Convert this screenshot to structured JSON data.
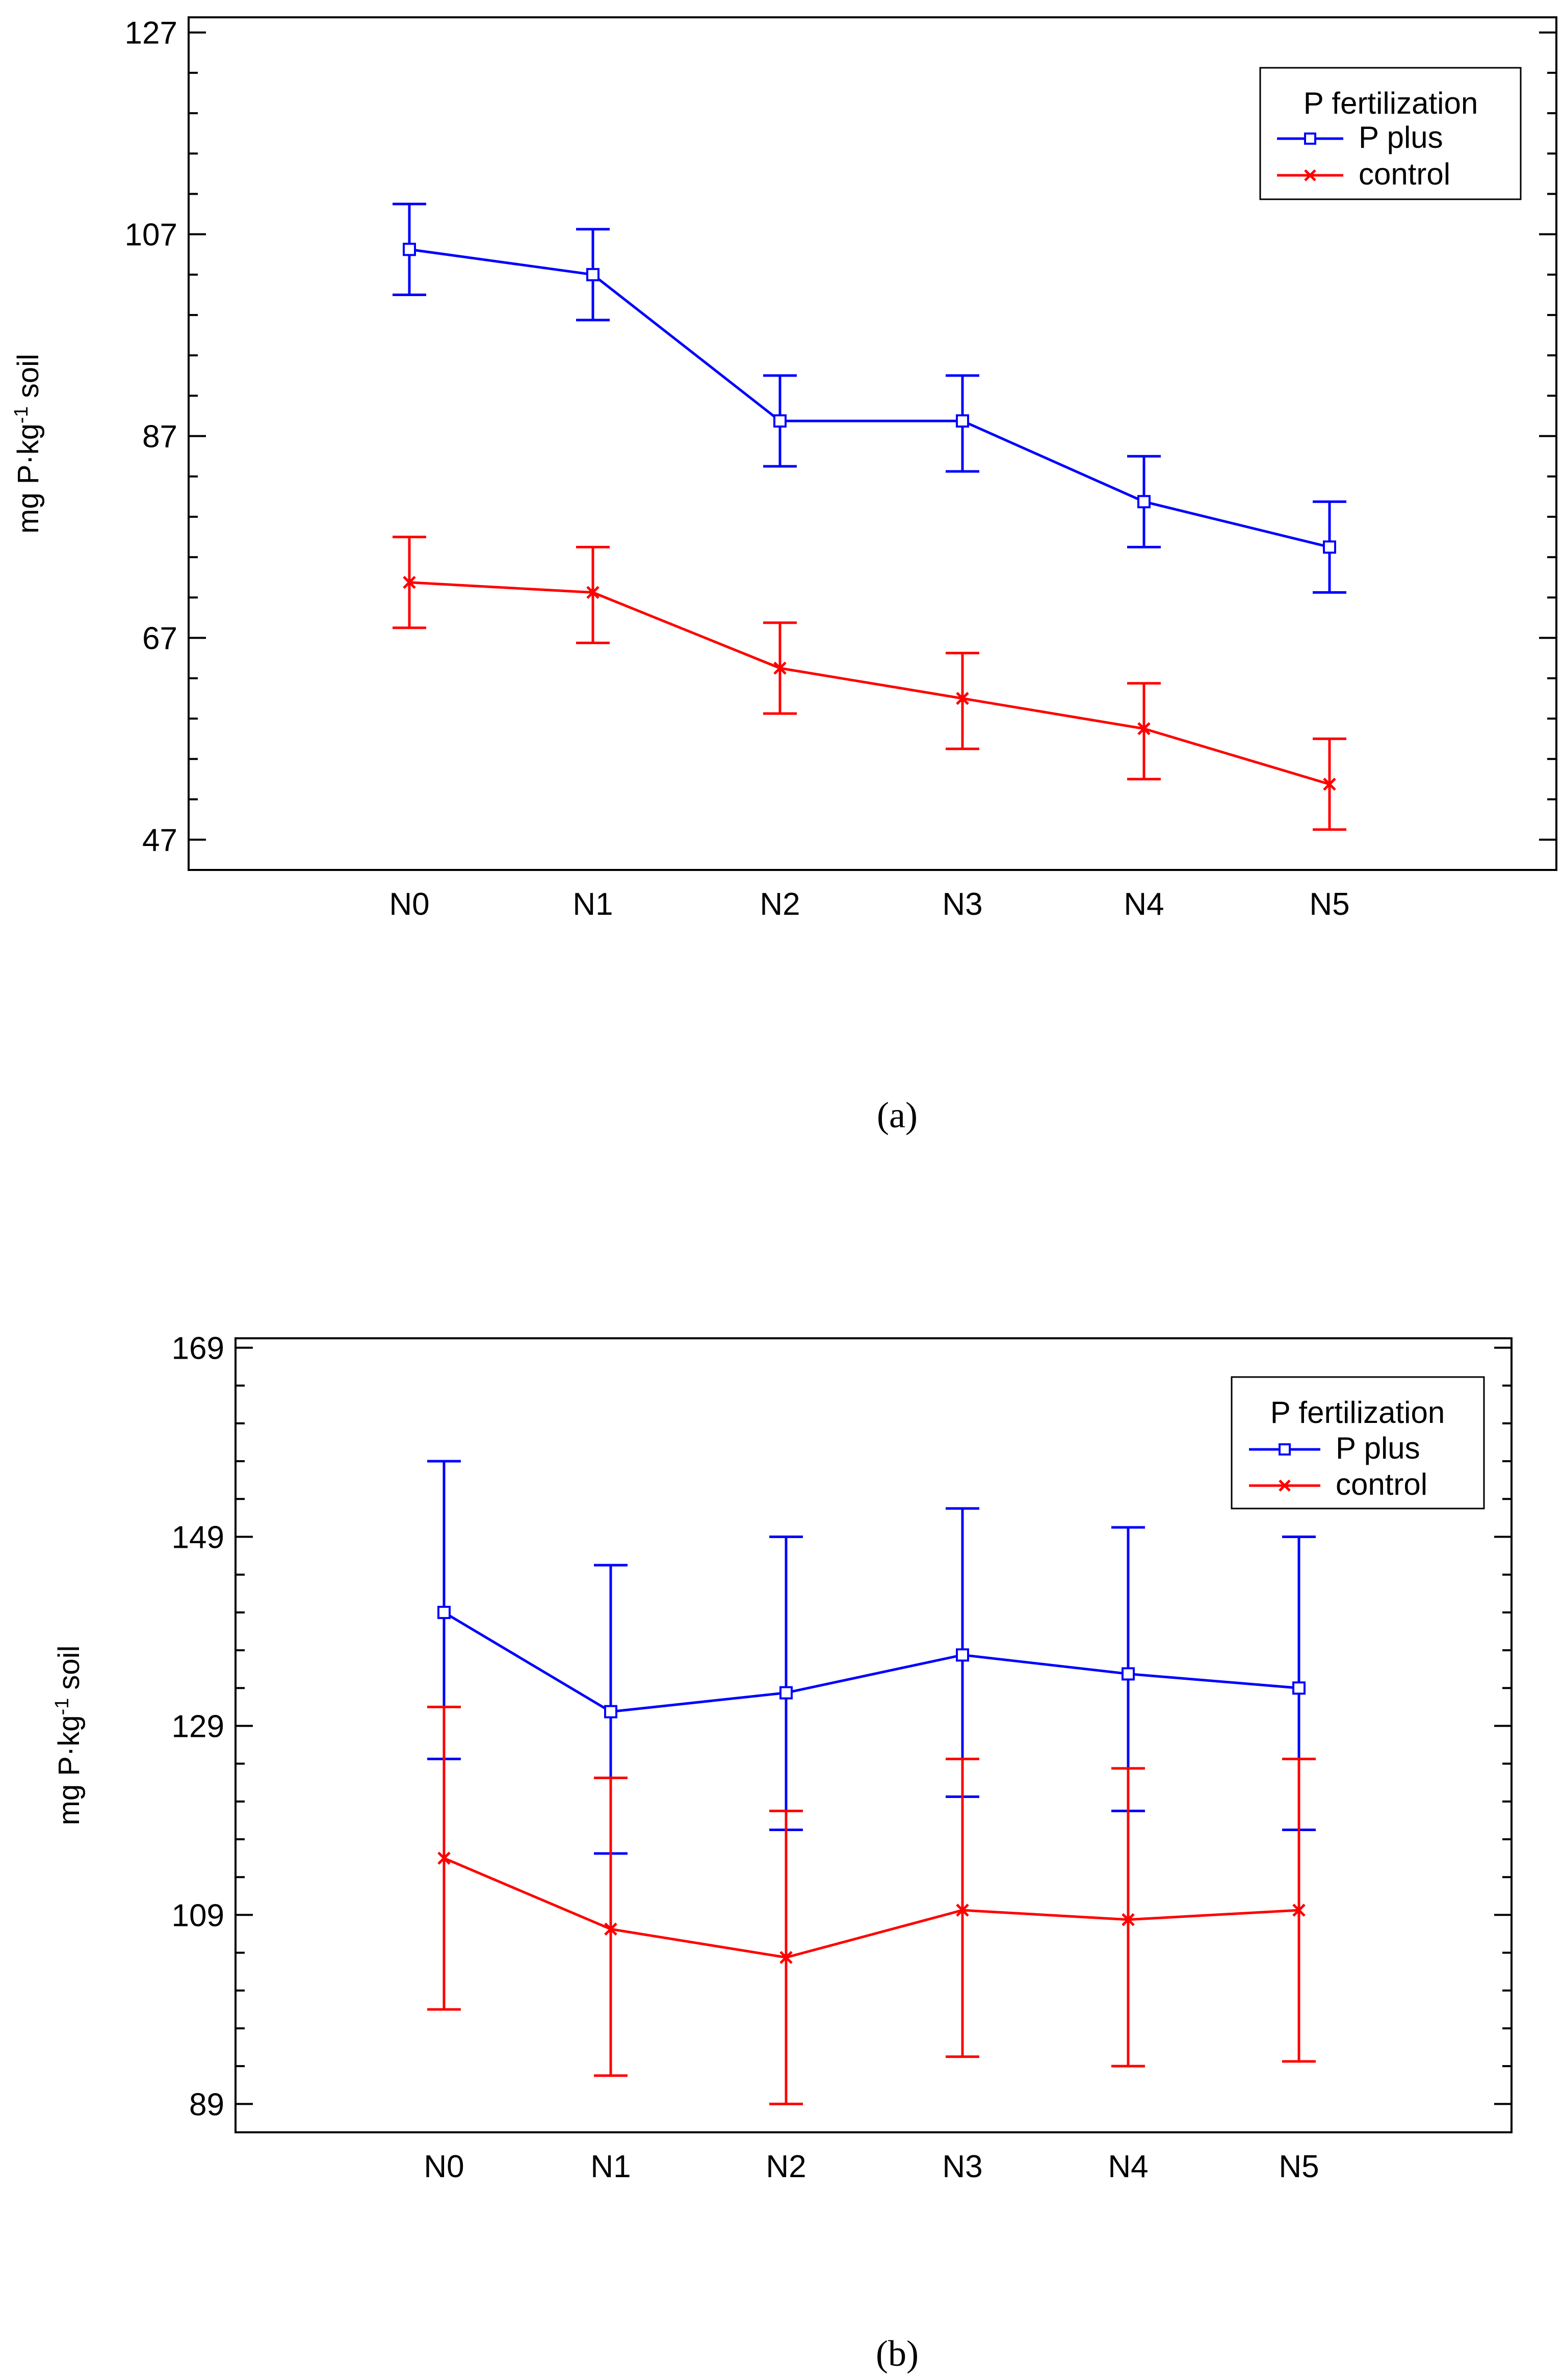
{
  "chart_data": [
    {
      "type": "line",
      "panel_label": "(a)",
      "ylabel": {
        "main": "mg P·kg",
        "sup": "-1",
        "tail": " soil"
      },
      "categories": [
        "N0",
        "N1",
        "N2",
        "N3",
        "N4",
        "N5"
      ],
      "ylim": [
        44,
        128.5
      ],
      "yticks": [
        47,
        67,
        87,
        107,
        127
      ],
      "ytick_labels": [
        "47",
        "67",
        "87",
        "107",
        "127"
      ],
      "grid": false,
      "legend": {
        "title": "P fertilization",
        "position": "top-right"
      },
      "series": [
        {
          "name": "P plus",
          "color": "#0000ff",
          "marker": "square",
          "values": [
            105.5,
            103,
            88.5,
            88.5,
            80.5,
            76
          ],
          "err_low": [
            101,
            98.5,
            84,
            83.5,
            76,
            71.5
          ],
          "err_high": [
            110,
            107.5,
            93,
            93,
            85,
            80.5
          ]
        },
        {
          "name": "control",
          "color": "#ff0000",
          "marker": "x",
          "values": [
            72.5,
            71.5,
            64,
            61,
            58,
            52.5
          ],
          "err_low": [
            68,
            66.5,
            59.5,
            56,
            53,
            48
          ],
          "err_high": [
            77,
            76,
            68.5,
            65.5,
            62.5,
            57
          ]
        }
      ]
    },
    {
      "type": "line",
      "panel_label": "(b)",
      "ylabel": {
        "main": "mg P·kg",
        "sup": "-1",
        "tail": " soil"
      },
      "categories": [
        "N0",
        "N1",
        "N2",
        "N3",
        "N4",
        "N5"
      ],
      "ylim": [
        86,
        170
      ],
      "yticks": [
        89,
        109,
        129,
        149,
        169
      ],
      "ytick_labels": [
        "89",
        "109",
        "129",
        "149",
        "169"
      ],
      "grid": false,
      "legend": {
        "title": "P fertilization",
        "position": "top-right"
      },
      "series": [
        {
          "name": "P plus",
          "color": "#0000ff",
          "marker": "square",
          "values": [
            141,
            130.5,
            132.5,
            136.5,
            134.5,
            133
          ],
          "err_low": [
            125.5,
            115.5,
            118,
            121.5,
            120,
            118
          ],
          "err_high": [
            157,
            146,
            149,
            152,
            150,
            149
          ]
        },
        {
          "name": "control",
          "color": "#ff0000",
          "marker": "x",
          "values": [
            115,
            107.5,
            104.5,
            109.5,
            108.5,
            109.5
          ],
          "err_low": [
            99,
            92,
            89,
            94,
            93,
            93.5
          ],
          "err_high": [
            131,
            123.5,
            120,
            125.5,
            124.5,
            125.5
          ]
        }
      ]
    }
  ]
}
